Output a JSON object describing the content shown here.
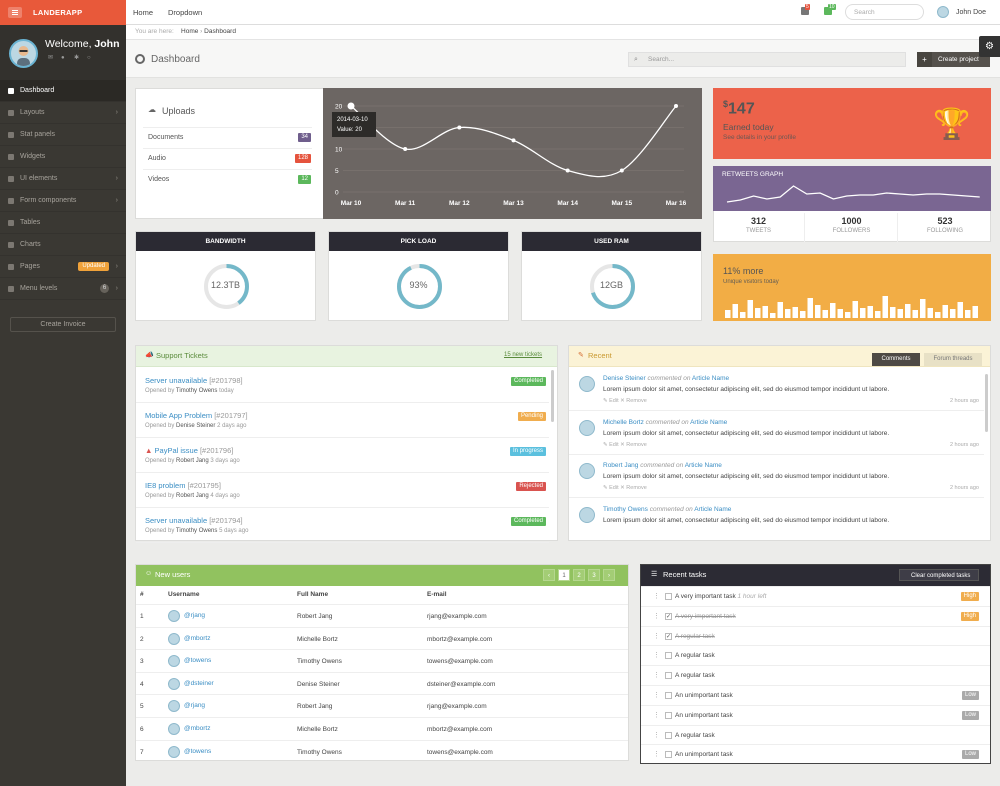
{
  "app": {
    "logo": "LANDERAPP"
  },
  "profile": {
    "welcome": "Welcome,",
    "name": "John"
  },
  "sidebar": {
    "items": [
      {
        "label": "Dashboard",
        "active": true
      },
      {
        "label": "Layouts",
        "chevron": true
      },
      {
        "label": "Stat panels"
      },
      {
        "label": "Widgets"
      },
      {
        "label": "UI elements",
        "chevron": true
      },
      {
        "label": "Form components",
        "chevron": true
      },
      {
        "label": "Tables"
      },
      {
        "label": "Charts"
      },
      {
        "label": "Pages",
        "badge": "Updated",
        "chevron": true
      },
      {
        "label": "Menu levels",
        "count": "6",
        "chevron": true
      }
    ],
    "create_invoice": "Create Invoice"
  },
  "topbar": {
    "nav": [
      "Home",
      "Dropdown"
    ],
    "notif_counts": [
      "5",
      "10"
    ],
    "search_placeholder": "Search",
    "user_name": "John Doe"
  },
  "breadcrumb": {
    "prefix": "You are here:",
    "items": [
      "Home",
      "Dashboard"
    ]
  },
  "page": {
    "title": "Dashboard",
    "search_placeholder": "Search...",
    "create_project": "Create project"
  },
  "uploads": {
    "title": "Uploads",
    "rows": [
      {
        "label": "Documents",
        "count": "34",
        "color": "#6f5e8c"
      },
      {
        "label": "Audio",
        "count": "128",
        "color": "#e5533d"
      },
      {
        "label": "Videos",
        "count": "12",
        "color": "#5cb85c"
      }
    ]
  },
  "chart_data": {
    "type": "line",
    "categories": [
      "Mar 10",
      "Mar 11",
      "Mar 12",
      "Mar 13",
      "Mar 14",
      "Mar 15",
      "Mar 16"
    ],
    "values": [
      20,
      10,
      15,
      12,
      5,
      5,
      20
    ],
    "ylim": [
      0,
      20
    ],
    "yticks": [
      "0",
      "5",
      "10",
      "15",
      "20"
    ],
    "tooltip": {
      "date": "2014-03-10",
      "value": "Value: 20"
    },
    "background": "#6c6663"
  },
  "earned": {
    "currency": "$",
    "amount": "147",
    "title": "Earned today",
    "subtitle": "See details in your profile"
  },
  "retweets": {
    "title": "RETWEETS GRAPH",
    "stats": [
      {
        "value": "312",
        "label": "TWEETS"
      },
      {
        "value": "1000",
        "label": "FOLLOWERS"
      },
      {
        "value": "523",
        "label": "FOLLOWING"
      }
    ]
  },
  "visitors": {
    "title": "11% more",
    "subtitle": "Unique visitors today"
  },
  "gauges": [
    {
      "label": "BANDWIDTH",
      "value": "12.3TB",
      "fraction": 0.4
    },
    {
      "label": "PICK LOAD",
      "value": "93%",
      "fraction": 0.93
    },
    {
      "label": "USED RAM",
      "value": "12GB",
      "fraction": 0.7
    }
  ],
  "tickets": {
    "title": "Support Tickets",
    "link": "15 new tickets",
    "rows": [
      {
        "title": "Server unavailable",
        "id": "[#201798]",
        "opened": "Opened by",
        "by": "Timothy Owens",
        "when": "today",
        "status": "Completed",
        "color": "#5cb85c",
        "warn": false
      },
      {
        "title": "Mobile App Problem",
        "id": "[#201797]",
        "opened": "Opened by",
        "by": "Denise Steiner",
        "when": "2 days ago",
        "status": "Pending",
        "color": "#f0ad4e",
        "warn": false
      },
      {
        "title": "PayPal issue",
        "id": "[#201796]",
        "opened": "Opened by",
        "by": "Robert Jang",
        "when": "3 days ago",
        "status": "In progress",
        "color": "#5bc0de",
        "warn": true
      },
      {
        "title": "IE8 problem",
        "id": "[#201795]",
        "opened": "Opened by",
        "by": "Robert Jang",
        "when": "4 days ago",
        "status": "Rejected",
        "color": "#d9534f",
        "warn": false
      },
      {
        "title": "Server unavailable",
        "id": "[#201794]",
        "opened": "Opened by",
        "by": "Timothy Owens",
        "when": "5 days ago",
        "status": "Completed",
        "color": "#5cb85c",
        "warn": false
      }
    ]
  },
  "recent": {
    "title": "Recent",
    "tabs": [
      "Comments",
      "Forum threads"
    ],
    "rows": [
      {
        "name": "Denise Steiner",
        "action": "commented on",
        "target": "Article Name",
        "text": "Lorem ipsum dolor sit amet, consectetur adipiscing elit, sed do eiusmod tempor incididunt ut labore.",
        "edit": "Edit",
        "remove": "Remove",
        "time": "2 hours ago"
      },
      {
        "name": "Michelle Bortz",
        "action": "commented on",
        "target": "Article Name",
        "text": "Lorem ipsum dolor sit amet, consectetur adipiscing elit, sed do eiusmod tempor incididunt ut labore.",
        "edit": "Edit",
        "remove": "Remove",
        "time": "2 hours ago"
      },
      {
        "name": "Robert Jang",
        "action": "commented on",
        "target": "Article Name",
        "text": "Lorem ipsum dolor sit amet, consectetur adipiscing elit, sed do eiusmod tempor incididunt ut labore.",
        "edit": "Edit",
        "remove": "Remove",
        "time": "2 hours ago"
      },
      {
        "name": "Timothy Owens",
        "action": "commented on",
        "target": "Article Name",
        "text": "Lorem ipsum dolor sit amet, consectetur adipiscing elit, sed do eiusmod tempor incididunt ut labore.",
        "edit": "",
        "remove": "",
        "time": ""
      }
    ]
  },
  "new_users": {
    "title": "New users",
    "pagination": [
      "‹",
      "1",
      "2",
      "3",
      "›"
    ],
    "columns": [
      "#",
      "Username",
      "Full Name",
      "E-mail"
    ],
    "rows": [
      {
        "n": "1",
        "user": "@rjang",
        "name": "Robert Jang",
        "email": "rjang@example.com"
      },
      {
        "n": "2",
        "user": "@mbortz",
        "name": "Michelle Bortz",
        "email": "mbortz@example.com"
      },
      {
        "n": "3",
        "user": "@towens",
        "name": "Timothy Owens",
        "email": "towens@example.com"
      },
      {
        "n": "4",
        "user": "@dsteiner",
        "name": "Denise Steiner",
        "email": "dsteiner@example.com"
      },
      {
        "n": "5",
        "user": "@rjang",
        "name": "Robert Jang",
        "email": "rjang@example.com"
      },
      {
        "n": "6",
        "user": "@mbortz",
        "name": "Michelle Bortz",
        "email": "mbortz@example.com"
      },
      {
        "n": "7",
        "user": "@towens",
        "name": "Timothy Owens",
        "email": "towens@example.com"
      }
    ]
  },
  "tasks": {
    "title": "Recent tasks",
    "clear": "Clear completed tasks",
    "rows": [
      {
        "label": "A very important task",
        "note": "1 hour left",
        "checked": false,
        "done": false,
        "priority": "High",
        "color": "#f0ad4e"
      },
      {
        "label": "A very important task",
        "note": "",
        "checked": true,
        "done": true,
        "priority": "High",
        "color": "#f0ad4e"
      },
      {
        "label": "A regular task",
        "note": "",
        "checked": true,
        "done": true,
        "priority": "",
        "color": ""
      },
      {
        "label": "A regular task",
        "note": "",
        "checked": false,
        "done": false,
        "priority": "",
        "color": ""
      },
      {
        "label": "A regular task",
        "note": "",
        "checked": false,
        "done": false,
        "priority": "",
        "color": ""
      },
      {
        "label": "An unimportant task",
        "note": "",
        "checked": false,
        "done": false,
        "priority": "Low",
        "color": "#aaaaaa"
      },
      {
        "label": "An unimportant task",
        "note": "",
        "checked": false,
        "done": false,
        "priority": "Low",
        "color": "#aaaaaa"
      },
      {
        "label": "A regular task",
        "note": "",
        "checked": false,
        "done": false,
        "priority": "",
        "color": ""
      },
      {
        "label": "An unimportant task",
        "note": "",
        "checked": false,
        "done": false,
        "priority": "Low",
        "color": "#aaaaaa"
      }
    ]
  }
}
